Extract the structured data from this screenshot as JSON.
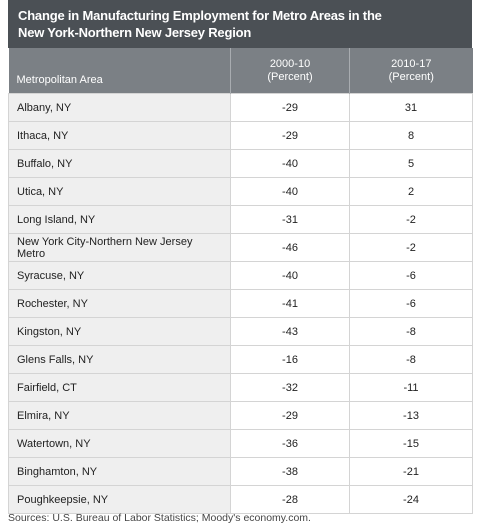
{
  "title_lines": [
    "Change in Manufacturing Employment for Metro Areas in the",
    "New York-Northern New Jersey Region"
  ],
  "table": {
    "columns": [
      "Metropolitan Area",
      "2000-10\n(Percent)",
      "2010-17\n(Percent)"
    ],
    "rows": [
      [
        "Albany, NY",
        -29,
        31
      ],
      [
        "Ithaca, NY",
        -29,
        8
      ],
      [
        "Buffalo, NY",
        -40,
        5
      ],
      [
        "Utica, NY",
        -40,
        2
      ],
      [
        "Long Island, NY",
        -31,
        -2
      ],
      [
        "New York City-Northern New Jersey Metro",
        -46,
        -2
      ],
      [
        "Syracuse, NY",
        -40,
        -6
      ],
      [
        "Rochester, NY",
        -41,
        -6
      ],
      [
        "Kingston, NY",
        -43,
        -8
      ],
      [
        "Glens Falls, NY",
        -16,
        -8
      ],
      [
        "Fairfield, CT",
        -32,
        -11
      ],
      [
        "Elmira, NY",
        -29,
        -13
      ],
      [
        "Watertown, NY",
        -36,
        -15
      ],
      [
        "Binghamton, NY",
        -38,
        -21
      ],
      [
        "Poughkeepsie, NY",
        -28,
        -24
      ]
    ]
  },
  "source": "Sources: U.S. Bureau of Labor Statistics; Moody's economy.com."
}
